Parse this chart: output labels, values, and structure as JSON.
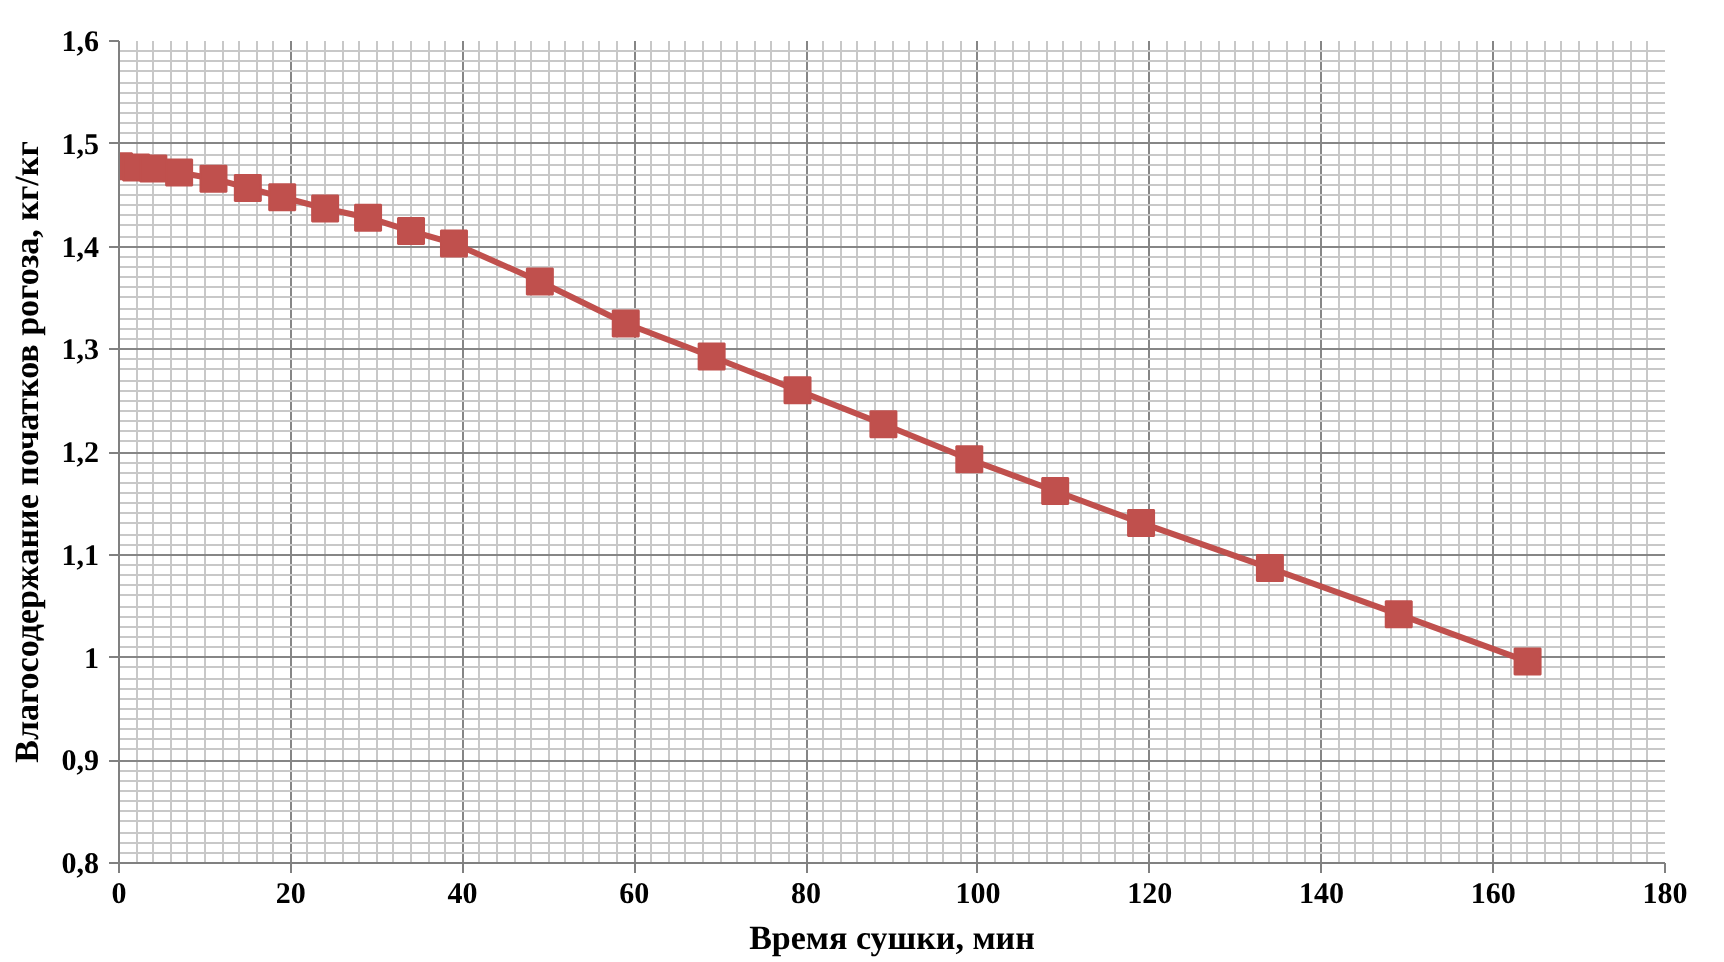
{
  "chart_data": {
    "type": "line",
    "xlabel": "Время сушки, мин",
    "ylabel": "Влагосодержание початков рогоза, кг/кг",
    "x": [
      0,
      2,
      4,
      7,
      11,
      15,
      19,
      24,
      29,
      34,
      39,
      49,
      59,
      69,
      79,
      89,
      99,
      109,
      119,
      134,
      149,
      164
    ],
    "series": [
      {
        "color": "#c0504d",
        "values": [
          1.478,
          1.477,
          1.476,
          1.472,
          1.466,
          1.457,
          1.448,
          1.437,
          1.428,
          1.415,
          1.403,
          1.366,
          1.325,
          1.293,
          1.26,
          1.227,
          1.193,
          1.162,
          1.131,
          1.087,
          1.042,
          0.996
        ]
      }
    ],
    "xlim": [
      0,
      180
    ],
    "xticks": [
      0,
      20,
      40,
      60,
      80,
      100,
      120,
      140,
      160,
      180
    ],
    "ylim": [
      0.8,
      1.6
    ],
    "yticks": [
      {
        "value": 0.8,
        "label": "0,8"
      },
      {
        "value": 0.9,
        "label": "0,9"
      },
      1,
      {
        "value": 1.1,
        "label": "1,1"
      },
      {
        "value": 1.2,
        "label": "1,2"
      },
      {
        "value": 1.3,
        "label": "1,3"
      },
      {
        "value": 1.4,
        "label": "1,4"
      },
      {
        "value": 1.5,
        "label": "1,5"
      },
      {
        "value": 1.6,
        "label": "1,6"
      }
    ],
    "grid": true,
    "marker": "square",
    "line_style": "solid"
  }
}
